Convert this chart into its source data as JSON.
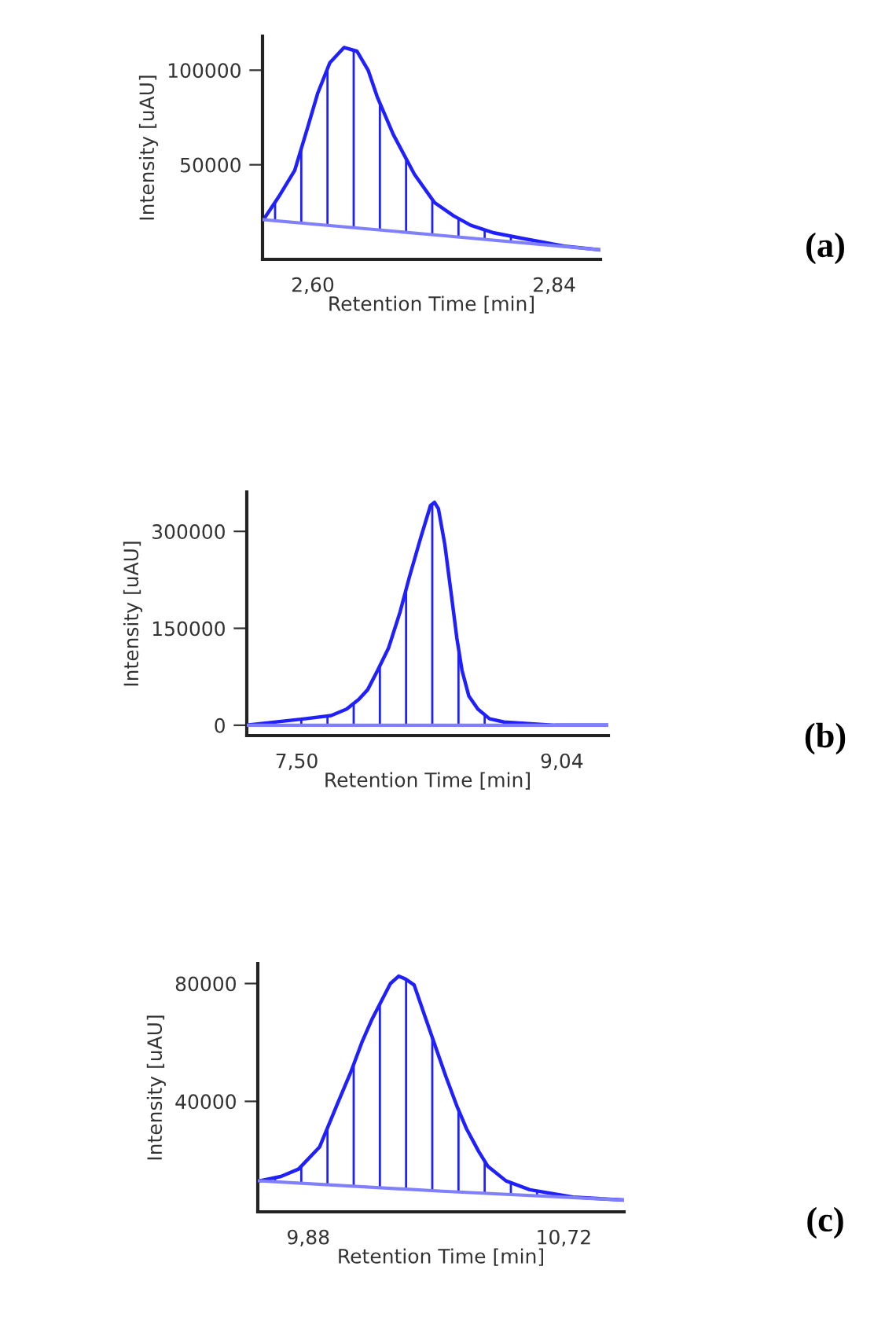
{
  "chart_data": [
    {
      "type": "area",
      "xlabel": "Retention Time [min]",
      "ylabel": "Intensity [uAU]",
      "xlim": [
        2.55,
        2.886
      ],
      "xticks": [
        {
          "value": 2.6,
          "label": "2,60"
        },
        {
          "value": 2.84,
          "label": "2,84"
        }
      ],
      "ylim": [
        0,
        118000
      ],
      "yticks": [
        50000,
        100000
      ],
      "grid": false,
      "legend": false,
      "annotations": [
        "(a)"
      ],
      "series": [
        {
          "color": "#1f1fff",
          "x": [
            2.551,
            2.566,
            2.582,
            2.595,
            2.605,
            2.617,
            2.631,
            2.644,
            2.655,
            2.664,
            2.68,
            2.701,
            2.721,
            2.74,
            2.757,
            2.78,
            2.809,
            2.85,
            2.886
          ],
          "values": [
            21000,
            33000,
            47000,
            70000,
            88000,
            104000,
            112000,
            110000,
            100000,
            86000,
            66000,
            45000,
            30000,
            23000,
            18000,
            14000,
            11000,
            7000,
            5000
          ]
        },
        {
          "type": "line",
          "color": "#8080ff",
          "x": [
            2.551,
            2.72,
            2.886
          ],
          "values": [
            21000,
            13000,
            5000
          ]
        }
      ]
    },
    {
      "type": "area",
      "xlabel": "Retention Time [min]",
      "ylabel": "Intensity [uAU]",
      "xlim": [
        7.21,
        9.31
      ],
      "xticks": [
        {
          "value": 7.5,
          "label": "7,50"
        },
        {
          "value": 9.04,
          "label": "9,04"
        }
      ],
      "ylim": [
        -16000,
        361000
      ],
      "yticks": [
        0,
        150000,
        300000
      ],
      "grid": false,
      "legend": false,
      "annotations": [
        "(b)"
      ],
      "series": [
        {
          "color": "#1f1fff",
          "x": [
            7.21,
            7.546,
            7.7,
            7.79,
            7.86,
            7.912,
            7.97,
            8.034,
            8.1,
            8.155,
            8.22,
            8.277,
            8.3,
            8.323,
            8.36,
            8.399,
            8.43,
            8.46,
            8.5,
            8.552,
            8.62,
            8.704,
            9.0,
            9.31
          ],
          "values": [
            0,
            10000,
            15000,
            25000,
            40000,
            55000,
            85000,
            120000,
            175000,
            230000,
            290000,
            340000,
            345000,
            335000,
            280000,
            200000,
            135000,
            85000,
            45000,
            25000,
            10000,
            5000,
            0,
            0
          ]
        },
        {
          "type": "line",
          "color": "#8080ff",
          "x": [
            7.21,
            8.26,
            9.31
          ],
          "values": [
            0,
            0,
            0
          ]
        }
      ]
    },
    {
      "type": "area",
      "xlabel": "Retention Time [min]",
      "ylabel": "Intensity [uAU]",
      "xlim": [
        9.714,
        10.918
      ],
      "xticks": [
        {
          "value": 9.88,
          "label": "9,88"
        },
        {
          "value": 10.72,
          "label": "10,72"
        }
      ],
      "ylim": [
        2500,
        86800
      ],
      "yticks": [
        40000,
        80000
      ],
      "grid": false,
      "legend": false,
      "annotations": [
        "(c)"
      ],
      "series": [
        {
          "color": "#1f1fff",
          "x": [
            9.719,
            9.79,
            9.848,
            9.917,
            9.977,
            10.02,
            10.056,
            10.09,
            10.125,
            10.15,
            10.177,
            10.2,
            10.228,
            10.263,
            10.3,
            10.332,
            10.37,
            10.401,
            10.44,
            10.47,
            10.53,
            10.608,
            10.75,
            10.918
          ],
          "values": [
            13000,
            14500,
            17000,
            24500,
            39500,
            50000,
            60000,
            68000,
            75000,
            80000,
            82500,
            81500,
            79500,
            69000,
            58000,
            48500,
            38000,
            30500,
            23000,
            18000,
            13000,
            10000,
            7500,
            6500
          ]
        },
        {
          "type": "line",
          "color": "#8080ff",
          "x": [
            9.719,
            10.32,
            10.918
          ],
          "values": [
            13000,
            9500,
            6500
          ]
        }
      ]
    }
  ]
}
